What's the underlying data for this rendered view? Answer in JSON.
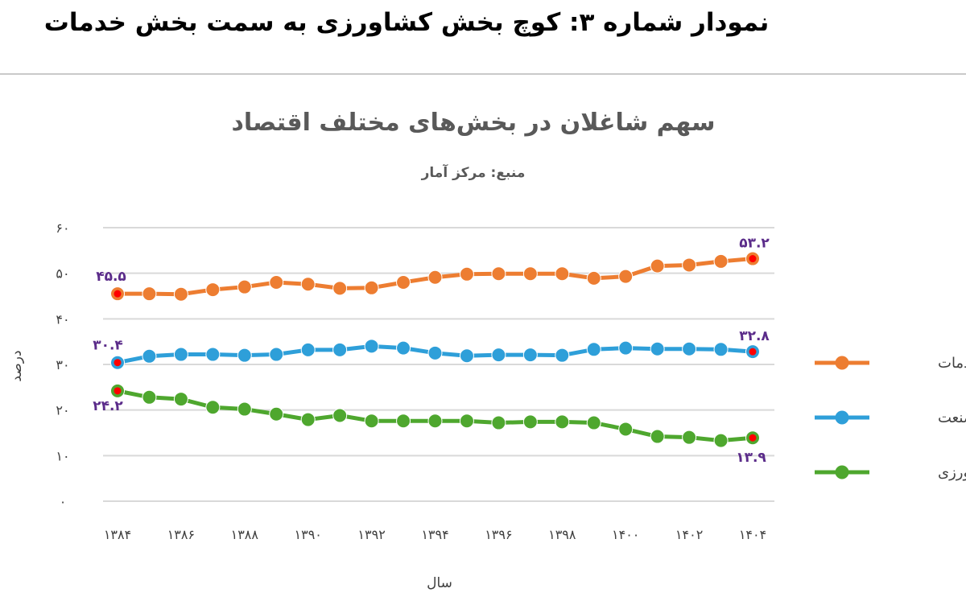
{
  "page": {
    "heading": "نمودار شماره ۳: کوچ بخش کشاورزی به سمت بخش خدمات"
  },
  "chart_data": {
    "type": "line",
    "title": "سهم شاغلان در بخش‌های مختلف اقتصاد",
    "subtitle": "منبع: مرکز آمار",
    "xlabel": "سال",
    "ylabel": "درصد",
    "ylim": [
      0,
      60
    ],
    "y_ticks": [
      "۰",
      "۱۰",
      "۲۰",
      "۳۰",
      "۴۰",
      "۵۰",
      "۶۰"
    ],
    "x_tick_labels": [
      "۱۳۸۴",
      "۱۳۸۶",
      "۱۳۸۸",
      "۱۳۹۰",
      "۱۳۹۲",
      "۱۳۹۴",
      "۱۳۹۶",
      "۱۳۹۸",
      "۱۴۰۰",
      "۱۴۰۲",
      "۱۴۰۴"
    ],
    "x": [
      1384,
      1385,
      1386,
      1387,
      1388,
      1389,
      1390,
      1391,
      1392,
      1393,
      1394,
      1395,
      1396,
      1397,
      1398,
      1399,
      1400,
      1401,
      1402,
      1403,
      1404
    ],
    "grid": true,
    "legend_position": "right",
    "series": [
      {
        "name": "خدمات",
        "color": "#ed7d31",
        "values": [
          45.5,
          45.5,
          45.4,
          46.4,
          47.0,
          48.0,
          47.6,
          46.7,
          46.8,
          48.0,
          49.1,
          49.8,
          49.9,
          49.9,
          49.9,
          48.9,
          49.3,
          51.6,
          51.8,
          52.6,
          53.2
        ],
        "data_labels": [
          {
            "index": 0,
            "text": "۴۵.۵"
          },
          {
            "index": 20,
            "text": "۵۳.۲"
          }
        ]
      },
      {
        "name": "صنعت",
        "color": "#2e9fd9",
        "values": [
          30.4,
          31.8,
          32.2,
          32.2,
          32.0,
          32.2,
          33.2,
          33.2,
          34.0,
          33.6,
          32.5,
          31.9,
          32.1,
          32.1,
          32.0,
          33.3,
          33.6,
          33.4,
          33.4,
          33.3,
          32.8
        ],
        "data_labels": [
          {
            "index": 0,
            "text": "۳۰.۴"
          },
          {
            "index": 20,
            "text": "۳۲.۸"
          }
        ]
      },
      {
        "name": "کشاورزی",
        "color": "#4ea72e",
        "values": [
          24.2,
          22.8,
          22.4,
          20.6,
          20.2,
          19.1,
          17.9,
          18.8,
          17.6,
          17.6,
          17.6,
          17.6,
          17.2,
          17.4,
          17.4,
          17.2,
          15.8,
          14.2,
          14.0,
          13.3,
          13.9
        ],
        "data_labels": [
          {
            "index": 0,
            "text": "۲۴.۲"
          },
          {
            "index": 20,
            "text": "۱۳.۹"
          }
        ]
      }
    ]
  }
}
